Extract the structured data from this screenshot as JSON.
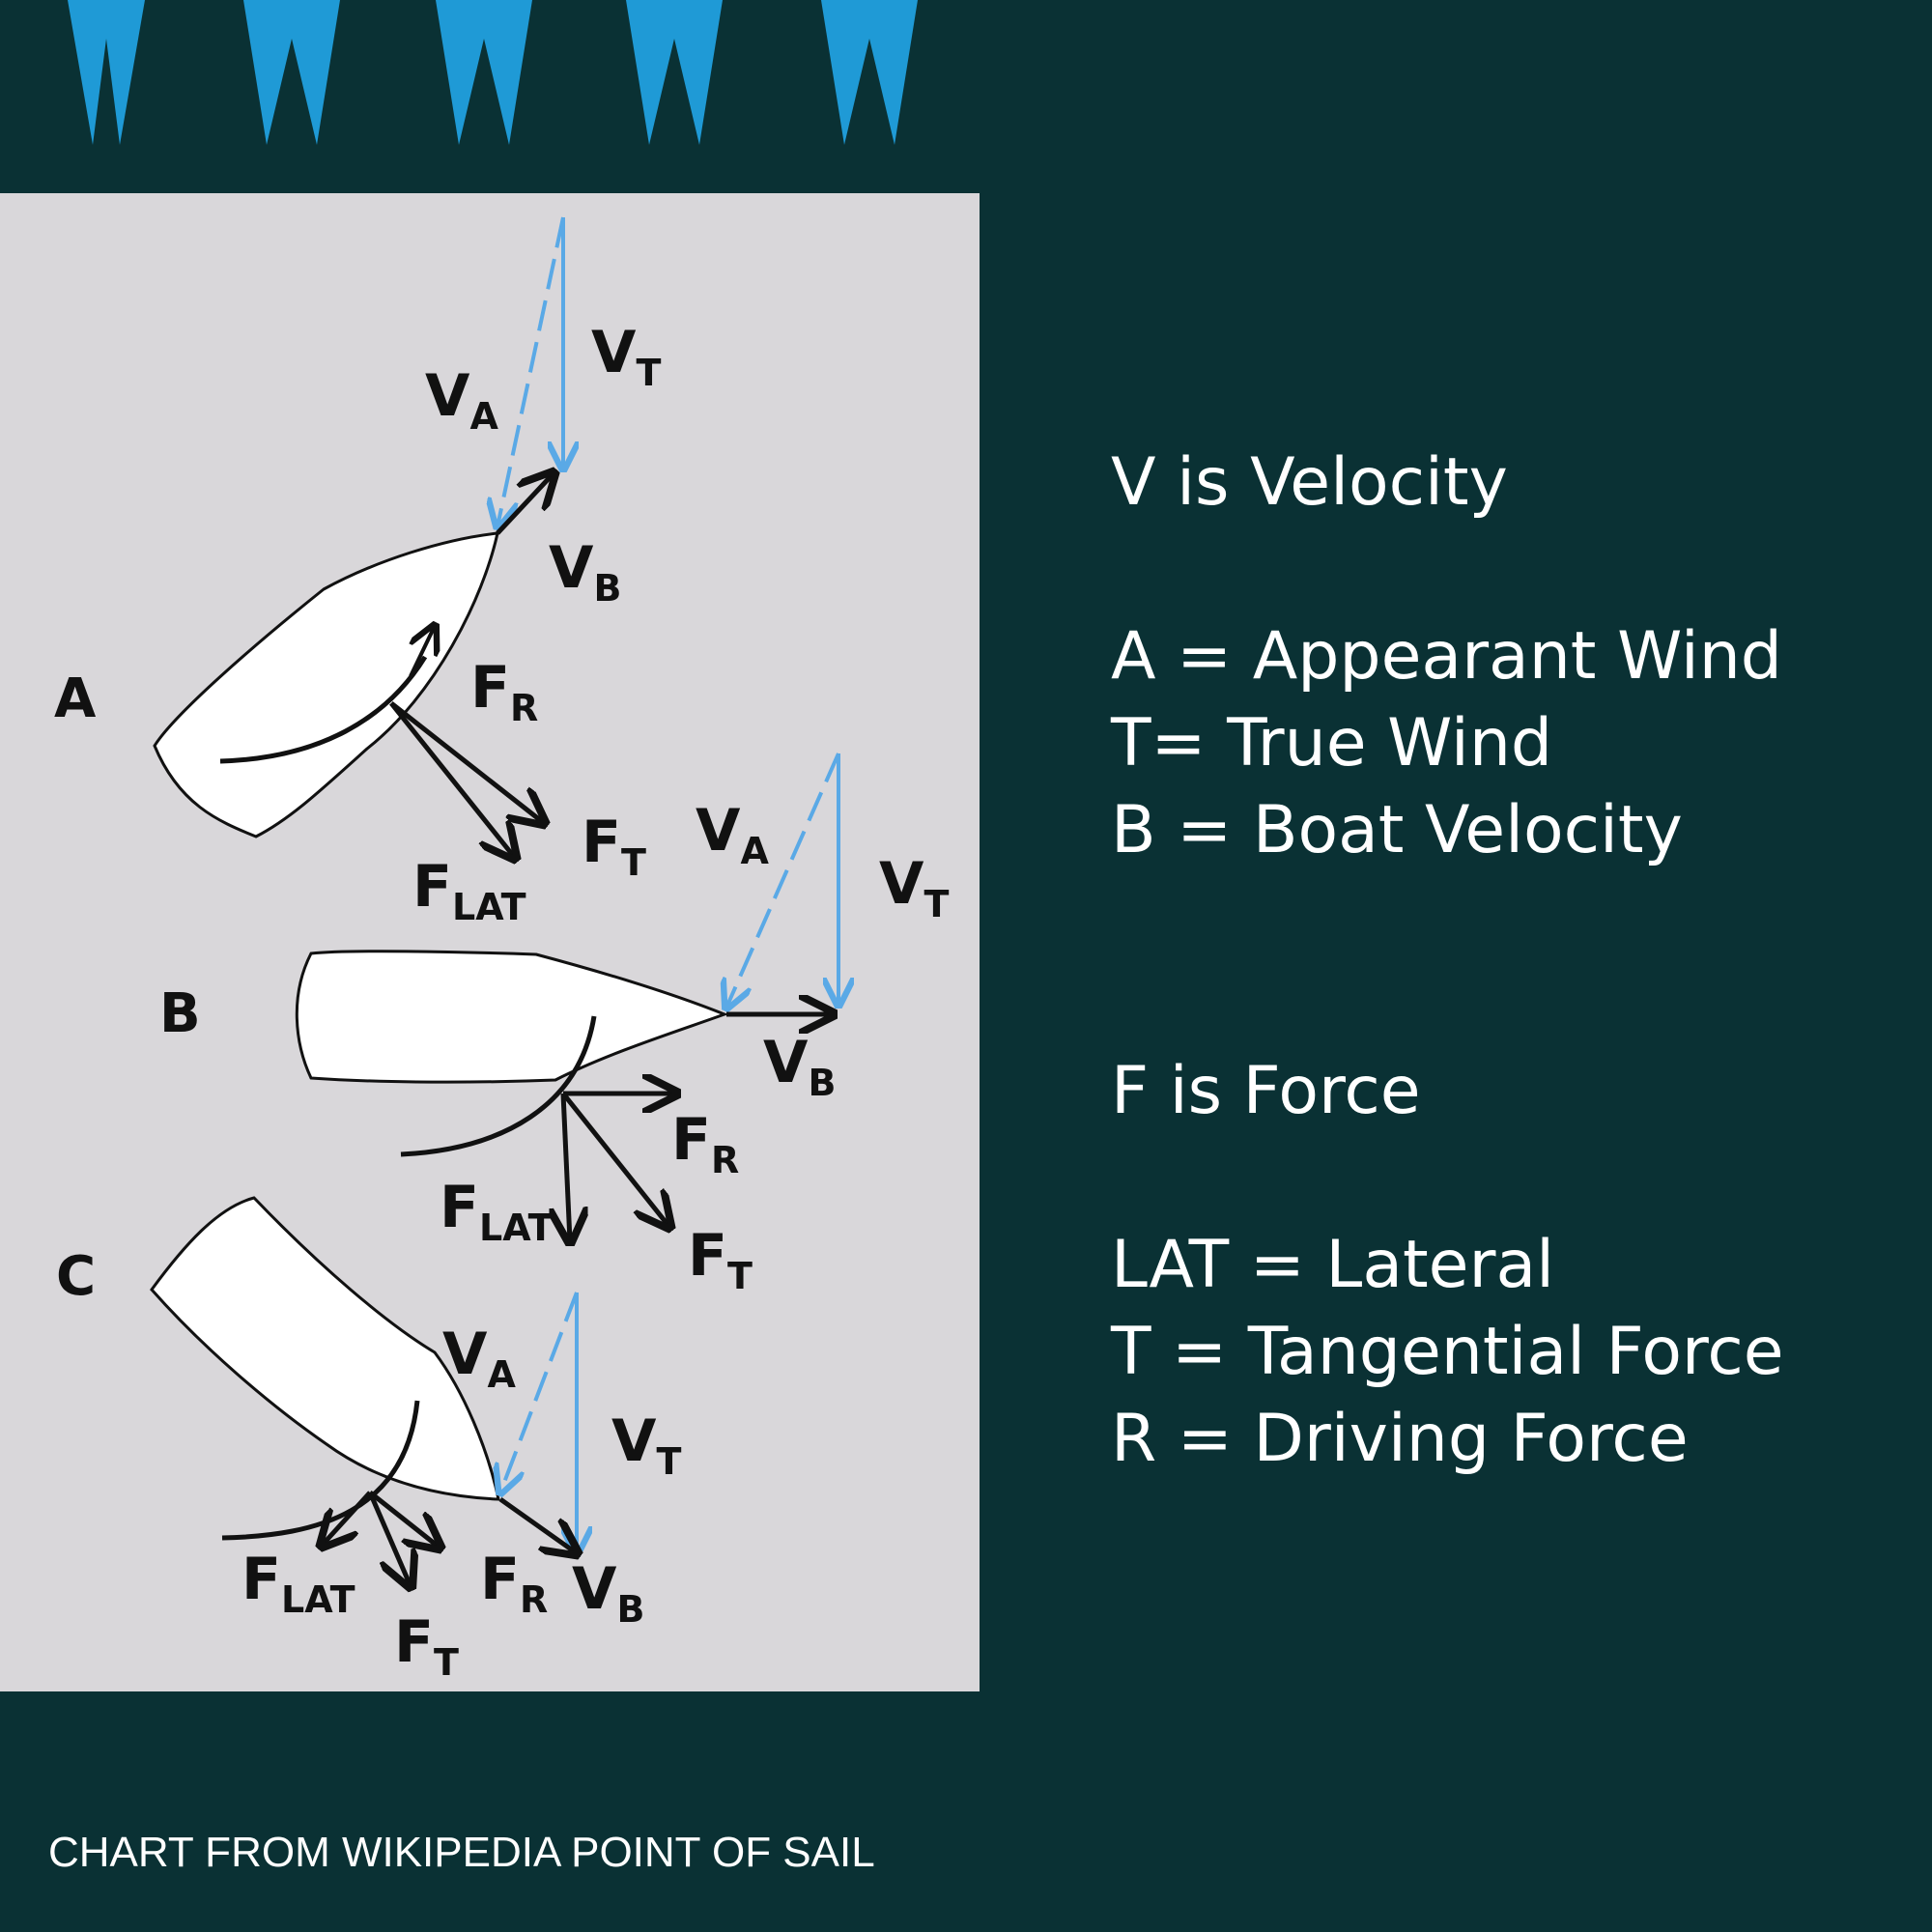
{
  "colors": {
    "background": "#0a3134",
    "panel": "#d9d7da",
    "wind_arrow": "#5aa9e6",
    "decor_teeth": "#1f9ad6",
    "text": "#ffffff"
  },
  "diagram": {
    "boats": [
      {
        "letter": "A",
        "labels": {
          "va": "V",
          "va_sub": "A",
          "vt": "V",
          "vt_sub": "T",
          "vb": "V",
          "vb_sub": "B",
          "fr": "F",
          "fr_sub": "R",
          "ft": "F",
          "ft_sub": "T",
          "flat": "F",
          "flat_sub": "LAT"
        }
      },
      {
        "letter": "B",
        "labels": {
          "va": "V",
          "va_sub": "A",
          "vt": "V",
          "vt_sub": "T",
          "vb": "V",
          "vb_sub": "B",
          "fr": "F",
          "fr_sub": "R",
          "ft": "F",
          "ft_sub": "T",
          "flat": "F",
          "flat_sub": "LAT"
        }
      },
      {
        "letter": "C",
        "labels": {
          "va": "V",
          "va_sub": "A",
          "vt": "V",
          "vt_sub": "T",
          "vb": "V",
          "vb_sub": "B",
          "fr": "F",
          "fr_sub": "R",
          "ft": "F",
          "ft_sub": "T",
          "flat": "F",
          "flat_sub": "LAT"
        }
      }
    ]
  },
  "legend": {
    "velocity_heading": "V is Velocity",
    "velocity_items": [
      "A = Appearant Wind",
      "T= True Wind",
      "B = Boat Velocity"
    ],
    "force_heading": "F is Force",
    "force_items": [
      "LAT = Lateral",
      "T = Tangential Force",
      "R = Driving Force"
    ]
  },
  "caption": "CHART FROM WIKIPEDIA POINT OF SAIL"
}
